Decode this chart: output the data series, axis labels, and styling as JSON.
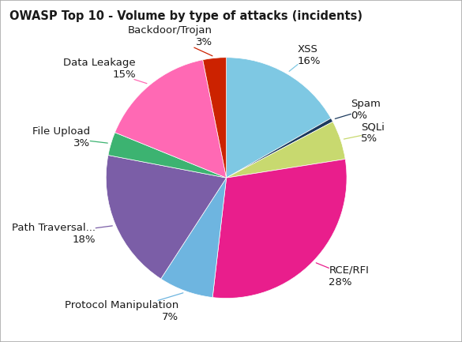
{
  "title": "OWASP Top 10 - Volume by type of attacks (incidents)",
  "labels": [
    "XSS",
    "Spam",
    "SQLi",
    "RCE/RFI",
    "Protocol Manipulation",
    "Path Traversal...",
    "File Upload",
    "Data Leakage",
    "Backdoor/Trojan"
  ],
  "values": [
    16,
    0.5,
    5,
    28,
    7,
    18,
    3,
    15,
    3
  ],
  "display_pcts": [
    "16%",
    "0%",
    "5%",
    "28%",
    "7%",
    "18%",
    "3%",
    "15%",
    "3%"
  ],
  "colors": [
    "#7EC8E3",
    "#1C3A5E",
    "#C8D96F",
    "#E91E8C",
    "#6EB5E0",
    "#7B5EA7",
    "#3CB371",
    "#FF69B4",
    "#CC2200"
  ],
  "startangle": 90,
  "title_fontsize": 10.5,
  "label_fontsize": 9.5,
  "background_color": "#ffffff",
  "border_color": "#aaaaaa"
}
